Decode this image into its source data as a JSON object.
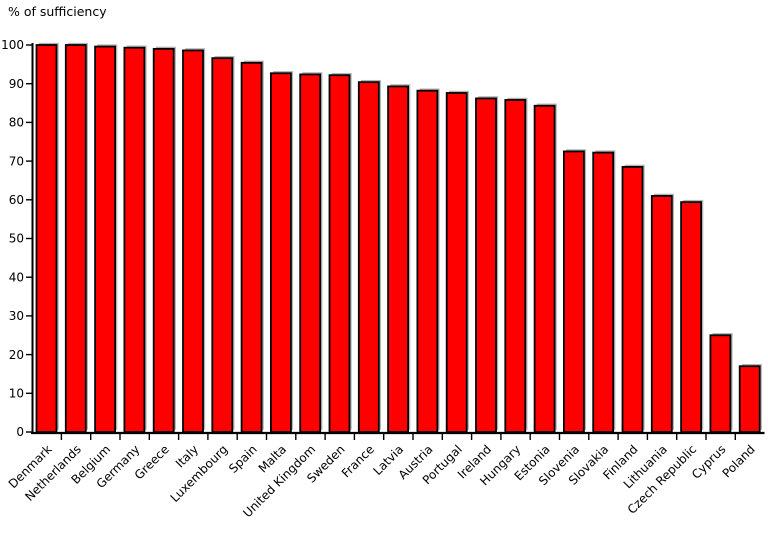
{
  "page": {
    "background": "#ffffff"
  },
  "chart_data": {
    "type": "bar",
    "title": "% of sufficiency",
    "ylabel": "% of sufficiency",
    "xlabel": "",
    "categories": [
      "Denmark",
      "Netherlands",
      "Belgium",
      "Germany",
      "Greece",
      "Italy",
      "Luxembourg",
      "Spain",
      "Malta",
      "United Kingdom",
      "Sweden",
      "France",
      "Latvia",
      "Austria",
      "Portugal",
      "Ireland",
      "Hungary",
      "Estonia",
      "Slovenia",
      "Slovakia",
      "Finland",
      "Lithuania",
      "Czech Republic",
      "Cyprus",
      "Poland"
    ],
    "values": [
      100,
      100,
      99.6,
      99.3,
      99,
      98.6,
      96.6,
      95.4,
      92.7,
      92.4,
      92.2,
      90.4,
      89.3,
      88.2,
      87.6,
      86.2,
      85.8,
      84.3,
      72.5,
      72.2,
      68.5,
      61,
      59.4,
      25,
      17
    ],
    "ylim": [
      0,
      100
    ],
    "yticks": [
      0,
      10,
      20,
      30,
      40,
      50,
      60,
      70,
      80,
      90,
      100
    ],
    "grid": false,
    "legend": "none",
    "x_label_rotation_deg": -45,
    "x_tick_position": "between-categories",
    "bar_color": "#ff0000",
    "bar_border_color": "#000000",
    "bar_shadow_color": "#b5b5b5",
    "axis_color": "#000000",
    "text_color": "#000000"
  }
}
